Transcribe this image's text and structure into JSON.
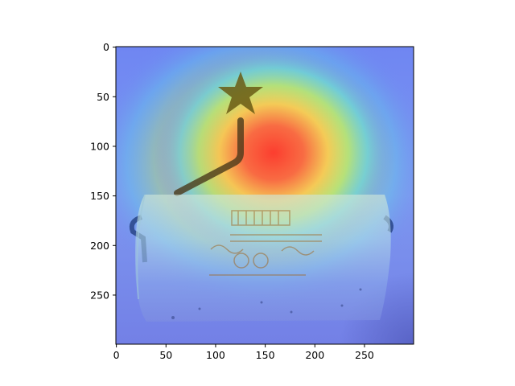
{
  "figure": {
    "image": {
      "subject": "paper-towel-roll-with-star-topped-stand",
      "overlay": "attention-heatmap",
      "colormap": "jet",
      "heat_peak": [
        190,
        85
      ]
    },
    "axes": {
      "x_ticks": [
        0,
        50,
        100,
        150,
        200,
        250
      ],
      "y_ticks": [
        0,
        50,
        100,
        150,
        200,
        250
      ],
      "x_range": [
        0,
        299
      ],
      "y_range": [
        0,
        299
      ],
      "y_inverted": true
    }
  }
}
